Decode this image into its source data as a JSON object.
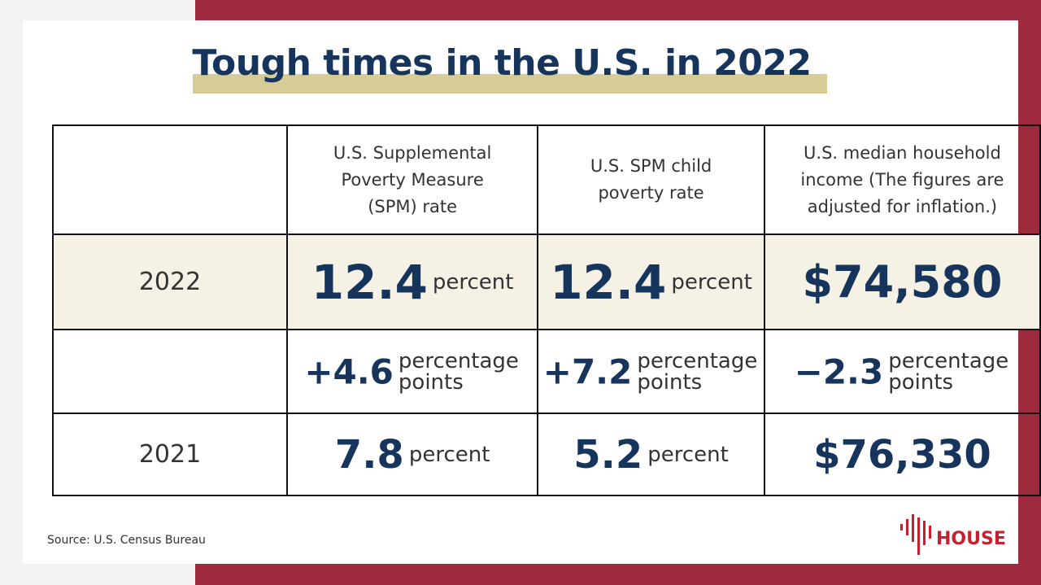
{
  "header": {
    "title": "Tough times in the U.S. in 2022"
  },
  "table": {
    "columns": [
      "U.S. Supplemental Poverty Measure (SPM) rate",
      "U.S. SPM child poverty rate",
      "U.S. median household income (The figures are adjusted for inflation.)"
    ],
    "rows": [
      {
        "label": "2022",
        "cells": [
          {
            "value": "12.4",
            "unit": "percent"
          },
          {
            "value": "12.4",
            "unit": "percent"
          },
          {
            "value": "$74,580"
          }
        ]
      },
      {
        "cells": [
          {
            "value": "+4.6",
            "unit": "percentage points"
          },
          {
            "value": "+7.2",
            "unit": "percentage points"
          },
          {
            "value": "−2.3",
            "unit": "percentage points"
          }
        ]
      },
      {
        "label": "2021",
        "cells": [
          {
            "value": "7.8",
            "unit": "percent"
          },
          {
            "value": "5.2",
            "unit": "percent"
          },
          {
            "value": "$76,330"
          }
        ]
      }
    ]
  },
  "footer": {
    "source": "Source: U.S. Census Bureau",
    "logo": "HOUSE"
  }
}
